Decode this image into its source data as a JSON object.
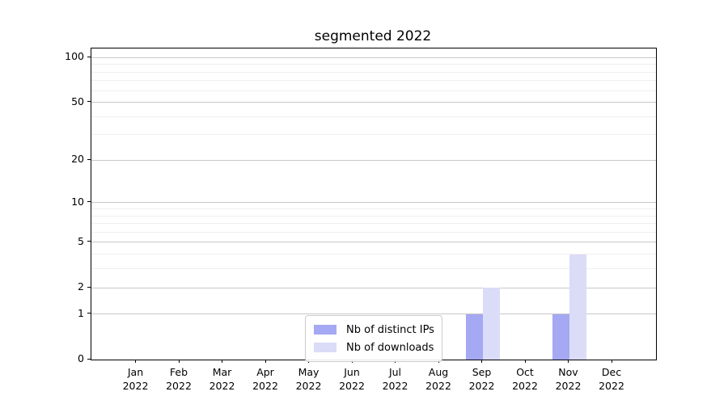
{
  "title": "segmented 2022",
  "colors": {
    "distinct_ips": "#a5a8f2",
    "downloads": "#dbdcf8",
    "grid_major": "#c8c8c8",
    "grid_minor": "#efefef",
    "axis": "#000000"
  },
  "legend": {
    "items": [
      {
        "label": "Nb of distinct IPs",
        "color_key": "distinct_ips"
      },
      {
        "label": "Nb of downloads",
        "color_key": "downloads"
      }
    ]
  },
  "chart_data": {
    "type": "bar",
    "title": "segmented 2022",
    "categories": [
      "Jan",
      "Feb",
      "Mar",
      "Apr",
      "May",
      "Jun",
      "Jul",
      "Aug",
      "Sep",
      "Oct",
      "Nov",
      "Dec"
    ],
    "year": "2022",
    "series": [
      {
        "name": "Nb of distinct IPs",
        "key": "distinct_ips",
        "values": [
          0,
          0,
          0,
          0,
          0,
          0,
          0,
          0,
          1,
          0,
          1,
          0
        ]
      },
      {
        "name": "Nb of downloads",
        "key": "downloads",
        "values": [
          0,
          0,
          0,
          0,
          0,
          0,
          0,
          0,
          2,
          0,
          4,
          0
        ]
      }
    ],
    "xlabel": "",
    "ylabel": "",
    "y_scale": "log1p",
    "ylim": [
      0,
      115
    ],
    "y_ticks_major": [
      0,
      1,
      2,
      5,
      10,
      20,
      50,
      100
    ],
    "y_ticks_minor": [
      3,
      4,
      6,
      7,
      8,
      9,
      30,
      40,
      60,
      70,
      80,
      90
    ],
    "grid": "both-horizontal",
    "legend_position": "lower center-left inside plot"
  }
}
